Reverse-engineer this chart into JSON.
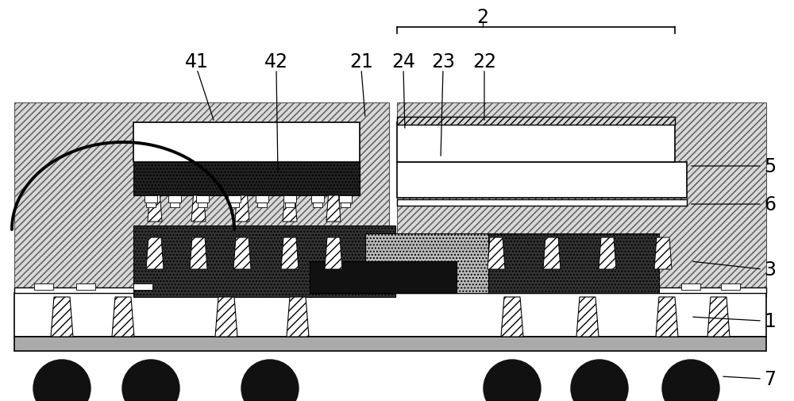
{
  "fig_width": 10.0,
  "fig_height": 5.06,
  "dpi": 100,
  "bg_color": "#ffffff",
  "black": "#000000",
  "white": "#ffffff",
  "hatch_gray": "#d8d8d8",
  "dark": "#111111",
  "labels": [
    "1",
    "2",
    "3",
    "5",
    "6",
    "7",
    "41",
    "42",
    "21",
    "24",
    "23",
    "22"
  ]
}
